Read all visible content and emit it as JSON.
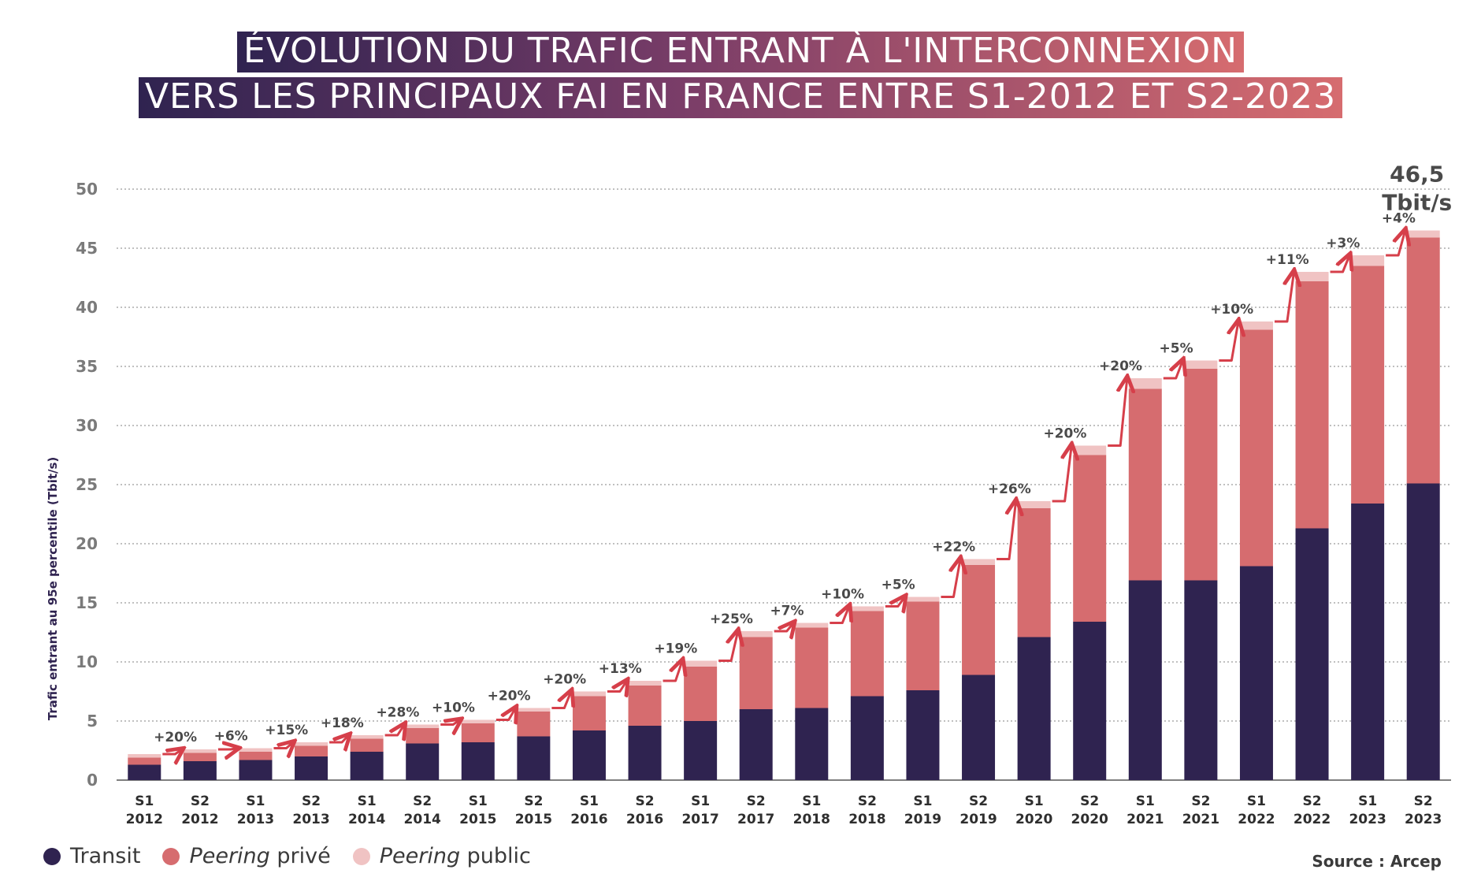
{
  "header": {
    "title_line1": "ÉVOLUTION DU TRAFIC ENTRANT À L'INTERCONNEXION",
    "title_line2": "VERS LES PRINCIPAUX FAI EN FRANCE ENTRE S1-2012 ET S2-2023"
  },
  "legend": {
    "transit": "Transit",
    "private_em": "Peering",
    "private_rest": " privé",
    "public_em": "Peering",
    "public_rest": " public"
  },
  "source": "Source : Arcep",
  "colors": {
    "transit": "#2f2350",
    "private": "#d66c6f",
    "public": "#f0c3c3",
    "arrow": "#d63f4a",
    "grid": "#9a9a9a",
    "axis_text": "#7a7a7a",
    "category_text": "#2e2e2e",
    "growth_text": "#4a4a4a",
    "ylabel": "#2f2350"
  },
  "chart_data": {
    "type": "bar",
    "stacked": true,
    "ylabel": "Trafic entrant au 95e percentile (Tbit/s)",
    "ylim": [
      0,
      50
    ],
    "yticks": [
      "0",
      "5",
      "10",
      "15",
      "20",
      "25",
      "30",
      "35",
      "40",
      "45",
      "50"
    ],
    "grid": true,
    "legend_position": "bottom-left",
    "categories": [
      [
        "S1",
        "2012"
      ],
      [
        "S2",
        "2012"
      ],
      [
        "S1",
        "2013"
      ],
      [
        "S2",
        "2013"
      ],
      [
        "S1",
        "2014"
      ],
      [
        "S2",
        "2014"
      ],
      [
        "S1",
        "2015"
      ],
      [
        "S2",
        "2015"
      ],
      [
        "S1",
        "2016"
      ],
      [
        "S2",
        "2016"
      ],
      [
        "S1",
        "2017"
      ],
      [
        "S2",
        "2017"
      ],
      [
        "S1",
        "2018"
      ],
      [
        "S2",
        "2018"
      ],
      [
        "S1",
        "2019"
      ],
      [
        "S2",
        "2019"
      ],
      [
        "S1",
        "2020"
      ],
      [
        "S2",
        "2020"
      ],
      [
        "S1",
        "2021"
      ],
      [
        "S2",
        "2021"
      ],
      [
        "S1",
        "2022"
      ],
      [
        "S2",
        "2022"
      ],
      [
        "S1",
        "2023"
      ],
      [
        "S2",
        "2023"
      ]
    ],
    "series": [
      {
        "name": "Transit",
        "values": [
          1.3,
          1.6,
          1.7,
          2.0,
          2.4,
          3.1,
          3.2,
          3.7,
          4.2,
          4.6,
          5.0,
          6.0,
          6.1,
          7.1,
          7.6,
          8.9,
          12.1,
          13.4,
          16.9,
          16.9,
          18.1,
          21.3,
          23.4,
          25.1
        ]
      },
      {
        "name": "Peering privé",
        "values": [
          0.6,
          0.7,
          0.7,
          0.9,
          1.1,
          1.3,
          1.6,
          2.1,
          2.9,
          3.4,
          4.6,
          6.1,
          6.8,
          7.2,
          7.5,
          9.3,
          10.9,
          14.1,
          16.2,
          17.9,
          20.0,
          20.9,
          20.1,
          20.8
        ]
      },
      {
        "name": "Peering public",
        "values": [
          0.3,
          0.3,
          0.3,
          0.3,
          0.3,
          0.3,
          0.3,
          0.3,
          0.4,
          0.4,
          0.5,
          0.5,
          0.4,
          0.4,
          0.4,
          0.5,
          0.6,
          0.8,
          0.9,
          0.7,
          0.7,
          0.8,
          0.9,
          0.6
        ]
      }
    ],
    "growth_labels": [
      "+20%",
      "+6%",
      "+15%",
      "+18%",
      "+28%",
      "+10%",
      "+20%",
      "+20%",
      "+13%",
      "+19%",
      "+25%",
      "+7%",
      "+10%",
      "+5%",
      "+22%",
      "+26%",
      "+20%",
      "+20%",
      "+5%",
      "+10%",
      "+11%",
      "+3%",
      "+4%"
    ],
    "final_value_label": [
      "46,5",
      "Tbit/s"
    ]
  }
}
